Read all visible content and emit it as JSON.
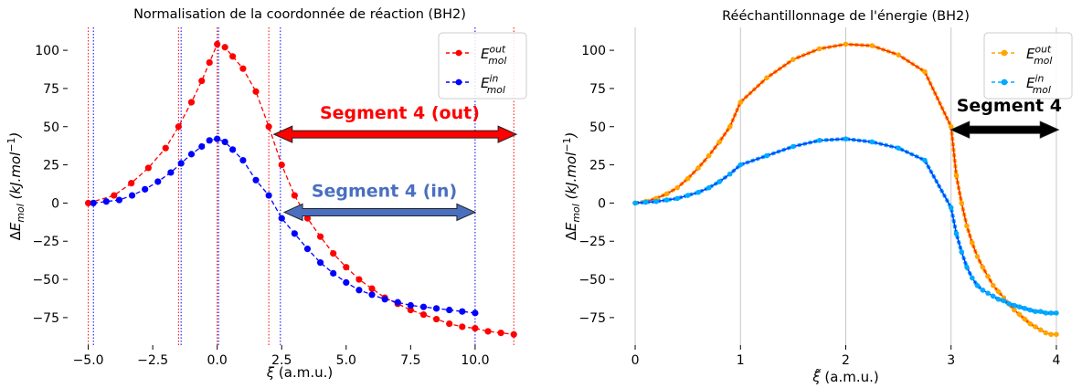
{
  "chart_data": [
    {
      "type": "line",
      "title": "Normalisation de la coordonnée de réaction (BH2)",
      "xlabel": "ξ (a.m.u.)",
      "ylabel": "ΔE_mol (kJ.mol^-1)",
      "xlim": [
        -5.8,
        12.2
      ],
      "ylim": [
        -93,
        115
      ],
      "xticks": [
        -5.0,
        -2.5,
        0.0,
        2.5,
        5.0,
        7.5,
        10.0
      ],
      "xtick_labels": [
        "−5.0",
        "−2.5",
        "0.0",
        "2.5",
        "5.0",
        "7.5",
        "10.0"
      ],
      "yticks": [
        100,
        75,
        50,
        25,
        0,
        -25,
        -50,
        -75
      ],
      "ytick_labels": [
        "100",
        "75",
        "50",
        "25",
        "0",
        "−25",
        "−50",
        "−75"
      ],
      "grid": false,
      "legend": "top-right",
      "series": [
        {
          "name": "E_mol^out",
          "color": "#ff0000",
          "style": "dashed-markers",
          "x": [
            -5.0,
            -4.0,
            -3.33,
            -2.67,
            -2.0,
            -1.5,
            -1.0,
            -0.6,
            -0.3,
            0.0,
            0.3,
            0.6,
            1.0,
            1.5,
            2.0,
            2.5,
            3.0,
            3.5,
            4.0,
            4.5,
            5.0,
            5.5,
            6.0,
            6.5,
            7.0,
            7.5,
            8.0,
            8.5,
            9.0,
            9.5,
            10.0,
            10.5,
            11.0,
            11.5
          ],
          "y": [
            0,
            5,
            13,
            23,
            36,
            50,
            66,
            80,
            92,
            104,
            102,
            96,
            88,
            73,
            50,
            25,
            5,
            -10,
            -22,
            -33,
            -42,
            -50,
            -56,
            -62,
            -66,
            -70,
            -73,
            -76,
            -79,
            -81,
            -82,
            -84,
            -85,
            -86
          ]
        },
        {
          "name": "E_mol^in",
          "color": "#0000ff",
          "style": "dashed-markers",
          "x": [
            -4.8,
            -4.3,
            -3.8,
            -3.3,
            -2.8,
            -2.3,
            -1.8,
            -1.4,
            -1.0,
            -0.6,
            -0.3,
            0.0,
            0.3,
            0.6,
            1.0,
            1.5,
            2.0,
            2.5,
            3.0,
            3.5,
            4.0,
            4.5,
            5.0,
            5.5,
            6.0,
            6.5,
            7.0,
            7.5,
            8.0,
            8.5,
            9.0,
            9.5,
            10.0
          ],
          "y": [
            0,
            1,
            2,
            5,
            9,
            14,
            20,
            26,
            32,
            37,
            41,
            42,
            40,
            35,
            28,
            15,
            5,
            -10,
            -20,
            -30,
            -39,
            -46,
            -52,
            -57,
            -60,
            -63,
            -65,
            -67,
            -68,
            -69,
            -70,
            -71,
            -72
          ]
        }
      ],
      "vlines": [
        {
          "x": -5.0,
          "color": "#ff0000"
        },
        {
          "x": -1.5,
          "color": "#ff0000"
        },
        {
          "x": 0.0,
          "color": "#ff0000"
        },
        {
          "x": 2.0,
          "color": "#ff0000"
        },
        {
          "x": 11.5,
          "color": "#ff0000"
        },
        {
          "x": -4.8,
          "color": "#0000ff"
        },
        {
          "x": -1.4,
          "color": "#0000ff"
        },
        {
          "x": 0.05,
          "color": "#0000ff"
        },
        {
          "x": 2.45,
          "color": "#0000ff"
        },
        {
          "x": 10.0,
          "color": "#0000ff"
        }
      ],
      "annotations": [
        {
          "text": "Segment 4 (out)",
          "color": "#ff0000",
          "arrow_from": 2.2,
          "arrow_to": 11.6,
          "arrow_y": 45,
          "arrow_color": "#ff0000"
        },
        {
          "text": "Segment 4 (in)",
          "color": "#4a6fc0",
          "arrow_from": 2.6,
          "arrow_to": 10.0,
          "arrow_y": -6,
          "arrow_color": "#4a6fc0"
        }
      ]
    },
    {
      "type": "line",
      "title": "Rééchantillonnage de l'énergie (BH2)",
      "xlabel": "ξ̃ (a.m.u.)",
      "ylabel": "ΔE_mol (kJ.mol^-1)",
      "xlim": [
        -0.2,
        4.2
      ],
      "ylim": [
        -93,
        115
      ],
      "xticks": [
        0,
        1,
        2,
        3,
        4
      ],
      "xtick_labels": [
        "0",
        "1",
        "2",
        "3",
        "4"
      ],
      "yticks": [
        100,
        75,
        50,
        25,
        0,
        -25,
        -50,
        -75
      ],
      "ytick_labels": [
        "100",
        "75",
        "50",
        "25",
        "0",
        "−25",
        "−50",
        "−75"
      ],
      "grid": true,
      "legend": "top-right",
      "series": [
        {
          "name": "E_mol^out",
          "color": "#ffa500",
          "line_color": "#ff2200",
          "x": [
            0.0,
            0.1,
            0.2,
            0.3,
            0.4,
            0.5,
            0.6,
            0.7,
            0.8,
            0.9,
            1.0,
            1.25,
            1.5,
            1.75,
            2.0,
            2.25,
            2.5,
            2.75,
            3.0,
            3.05,
            3.1,
            3.15,
            3.2,
            3.25,
            3.3,
            3.35,
            3.4,
            3.45,
            3.5,
            3.55,
            3.6,
            3.65,
            3.7,
            3.75,
            3.8,
            3.85,
            3.9,
            3.95,
            4.0
          ],
          "y": [
            0,
            1,
            3,
            6,
            10,
            16,
            23,
            31,
            40,
            50,
            66,
            82,
            94,
            101,
            104,
            103,
            97,
            86,
            50,
            18,
            0,
            -15,
            -26,
            -35,
            -42,
            -48,
            -54,
            -58,
            -62,
            -66,
            -70,
            -73,
            -76,
            -79,
            -81,
            -83,
            -85,
            -86,
            -86
          ]
        },
        {
          "name": "E_mol^in",
          "color": "#00aaff",
          "line_color": "#0033ff",
          "x": [
            0.0,
            0.1,
            0.2,
            0.3,
            0.4,
            0.5,
            0.6,
            0.7,
            0.8,
            0.9,
            1.0,
            1.25,
            1.5,
            1.75,
            2.0,
            2.25,
            2.5,
            2.75,
            3.0,
            3.05,
            3.1,
            3.15,
            3.2,
            3.25,
            3.3,
            3.35,
            3.4,
            3.45,
            3.5,
            3.55,
            3.6,
            3.65,
            3.7,
            3.75,
            3.8,
            3.85,
            3.9,
            3.95,
            4.0
          ],
          "y": [
            0,
            0.5,
            1,
            2,
            3,
            5,
            7,
            10,
            14,
            19,
            25,
            31,
            37,
            41,
            42,
            40,
            36,
            28,
            -3,
            -20,
            -32,
            -42,
            -49,
            -54,
            -57,
            -59,
            -61,
            -63,
            -64,
            -66,
            -67,
            -68,
            -69,
            -70,
            -71,
            -71,
            -72,
            -72,
            -72
          ]
        }
      ],
      "annotations": [
        {
          "text": "Segment 4",
          "color": "#000000",
          "arrow_from": 3.0,
          "arrow_to": 4.02,
          "arrow_y": 48,
          "arrow_color": "#000000"
        }
      ]
    }
  ]
}
